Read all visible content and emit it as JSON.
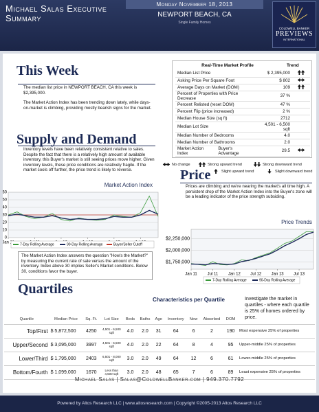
{
  "header": {
    "title": "Michael Salas Executive Summary",
    "date": "Monday November 18, 2013",
    "location": "NEWPORT BEACH, CA",
    "property_type": "Single Family Homes",
    "logo": [
      "COLDWELL BANKER",
      "PREVIEWS",
      "INTERNATIONAL"
    ]
  },
  "this_week": {
    "heading": "This Week",
    "paragraphs": [
      "The median list price in NEWPORT BEACH, CA this week is $2,395,000.",
      "The Market Action Index has been trending down lately, while days-on-market is climbing, providing mostly bearish signs for the market."
    ]
  },
  "market_profile": {
    "title": "Real-Time Market Profile",
    "trend_header": "Trend",
    "rows": [
      [
        "Median List Price",
        "$ 2,395,000"
      ],
      [
        "Asking Price Per Square Foot",
        "$ 802"
      ],
      [
        "Average Days on Market (DOM)",
        "109"
      ],
      [
        "Percent of Properties with Price Decrease",
        "37 %"
      ],
      [
        "Percent Relisted (reset DOM)",
        "47 %"
      ],
      [
        "Percent Flip (price increased)",
        "2 %"
      ],
      [
        "Median House Size (sq ft)",
        "2712"
      ],
      [
        "Median Lot Size",
        "4,501 - 6,500 sqft"
      ],
      [
        "Median Number of Bedrooms",
        "4.0"
      ],
      [
        "Median Number of Bathrooms",
        "2.0"
      ],
      [
        "Market Action Index",
        "Buyer's Advantage",
        "29.5"
      ]
    ],
    "legend": [
      "No change",
      "Strong upward trend",
      "Strong downward trend",
      "Slight upward trend",
      "Slight downward trend"
    ]
  },
  "supply_demand": {
    "heading": "Supply and Demand",
    "text": "Inventory levels have been relatively consistent relative to sales. Despite the fact that there is a relatively high amount of available inventory, this Buyer's market is still seeing prices move higher. Given inventory levels, these price conditions are relatively fragile. If the market cools off further, the price trend is likely to reverse.",
    "note": "The Market Action Index answers the question \"How's the Market?\" by measuring the current rate of sale versus the amount of the inventory.  Index above 30 implies Seller's Market conditions. Below 30, conditions favor the buyer."
  },
  "price": {
    "heading": "Price",
    "text": "Prices are climbing and we're nearing the market's all time high. A persistent drop of the Market Action Index into the Buyer's zone will be a leading indicator of the price strength subsiding."
  },
  "chart_data": [
    {
      "type": "line",
      "title": "Market Action Index",
      "categories": [
        "Jan 11",
        null,
        null,
        "Jul 11",
        null,
        null,
        "Jan 12",
        null,
        null,
        "Jul 12",
        null,
        null,
        "Jan 13",
        null,
        null,
        "Jul 13",
        null,
        null
      ],
      "series": [
        {
          "name": "7-Day Rolling Average",
          "color": "#3a9a3a",
          "values": [
            30,
            34,
            28,
            25,
            27,
            32,
            24,
            22,
            26,
            24,
            23,
            24,
            30,
            28,
            27,
            33,
            55,
            28
          ]
        },
        {
          "name": "90-Day Rolling Average",
          "color": "#1d2a5a",
          "values": [
            29,
            31,
            29,
            27,
            27,
            29,
            26,
            24,
            25,
            24,
            24,
            25,
            28,
            27,
            27,
            30,
            36,
            31
          ]
        }
      ],
      "cutoff": {
        "name": "Buyer/Seller Cutoff",
        "value": 30,
        "color": "#c0392b"
      },
      "ylim": [
        0,
        60
      ],
      "yticks": [
        0,
        10,
        20,
        30,
        40,
        50,
        60
      ],
      "grid": true
    },
    {
      "type": "line",
      "title": "Price Trends",
      "categories": [
        "Jan 11",
        null,
        null,
        "Jul 11",
        null,
        null,
        "Jan 12",
        null,
        null,
        "Jul 12",
        null,
        null,
        "Jan 13",
        null,
        null,
        "Jul 13",
        null,
        null
      ],
      "series": [
        {
          "name": "7-Day Rolling Average",
          "color": "#3a9a3a",
          "values": [
            1720000,
            1700000,
            1680000,
            1760000,
            1700000,
            1690000,
            1720000,
            1800000,
            1780000,
            1850000,
            1900000,
            1950000,
            2050000,
            2150000,
            2200000,
            2300000,
            2400000,
            2400000
          ]
        },
        {
          "name": "90-Day Rolling Average",
          "color": "#1d2a5a",
          "values": [
            1710000,
            1705000,
            1695000,
            1720000,
            1715000,
            1700000,
            1710000,
            1760000,
            1790000,
            1830000,
            1880000,
            1930000,
            2010000,
            2100000,
            2170000,
            2250000,
            2340000,
            2390000
          ]
        }
      ],
      "ylim": [
        1600000,
        2450000
      ],
      "yticks": [
        {
          "value": 1750000,
          "label": "$1,750,000"
        },
        {
          "value": 2000000,
          "label": "$2,000,000"
        },
        {
          "value": 2250000,
          "label": "$2,250,000"
        }
      ],
      "grid": true
    }
  ],
  "quartiles": {
    "heading": "Quartiles",
    "subheading": "Characteristics per Quartile",
    "intro": "Investigate the market in quartiles - where each quartile is 25% of homes ordered by price.",
    "columns": [
      "Quartile",
      "Median Price",
      "Sq. Ft.",
      "Lot Size",
      "Beds",
      "Baths",
      "Age",
      "Inventory",
      "New",
      "Absorbed",
      "DOM"
    ],
    "rows": [
      [
        "Top/First",
        "$ 5,872,500",
        "4250",
        "4,501 - 6,500 sqft",
        "4.0",
        "2.0",
        "31",
        "64",
        "6",
        "2",
        "190",
        "Most expensive 25% of properties"
      ],
      [
        "Upper/Second",
        "$ 3,095,000",
        "3997",
        "4,501 - 6,500 sqft",
        "4.0",
        "2.0",
        "22",
        "64",
        "8",
        "4",
        "95",
        "Upper-middle 25% of properties"
      ],
      [
        "Lower/Third",
        "$ 1,795,000",
        "2403",
        "6,501 - 8,000 sqft",
        "3.0",
        "2.0",
        "49",
        "64",
        "12",
        "6",
        "61",
        "Lower-middle 25% of properties"
      ],
      [
        "Bottom/Fourth",
        "$ 1,099,000",
        "1670",
        "Less than 4,500 sqft",
        "3.0",
        "2.0",
        "48",
        "65",
        "7",
        "6",
        "89",
        "Least expensive 25% of properties"
      ]
    ]
  },
  "footer": {
    "contact": [
      "Michael Salas",
      "Salas@ColdwellBanker.com",
      "949.370.7792"
    ],
    "powered": "Powered by Altos Research LLC | www.altosresearch.com | Copyright ©2005-2013 Altos Research LLC"
  }
}
